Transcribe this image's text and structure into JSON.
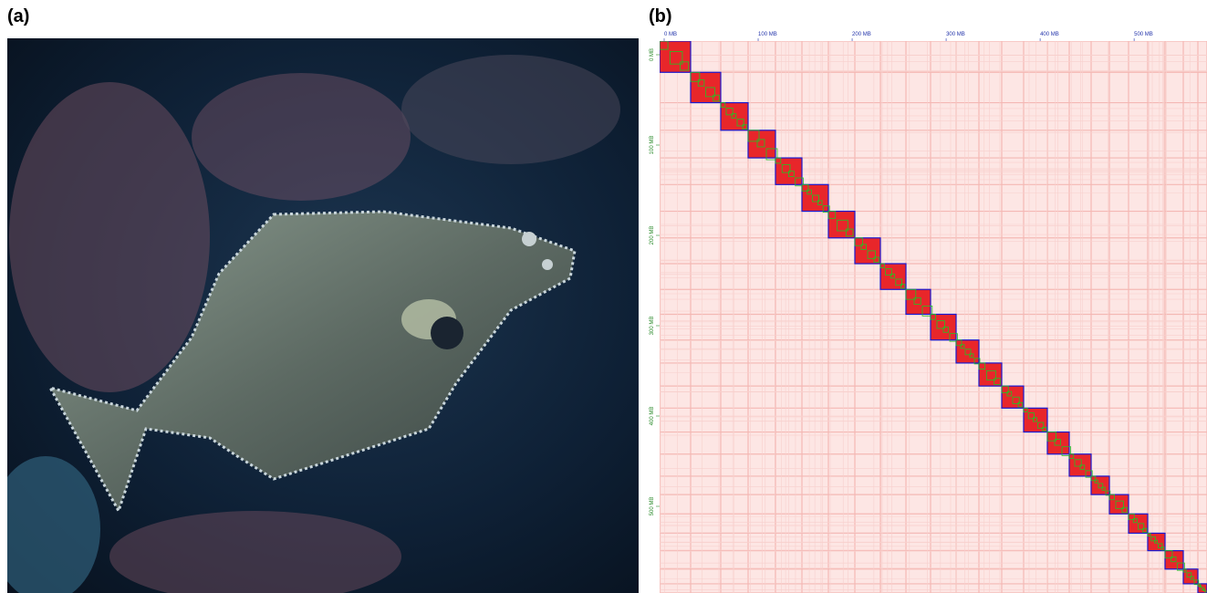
{
  "panels": [
    {
      "label": "(a)"
    },
    {
      "label": "(b)",
      "x_axis_labels": [
        "0 MB",
        "100 MB",
        "200 MB",
        "300 MB",
        "400 MB",
        "500 MB"
      ],
      "y_axis_labels": [
        "0 MB",
        "100 MB",
        "200 MB",
        "300 MB",
        "400 MB",
        "500 MB"
      ]
    }
  ]
}
